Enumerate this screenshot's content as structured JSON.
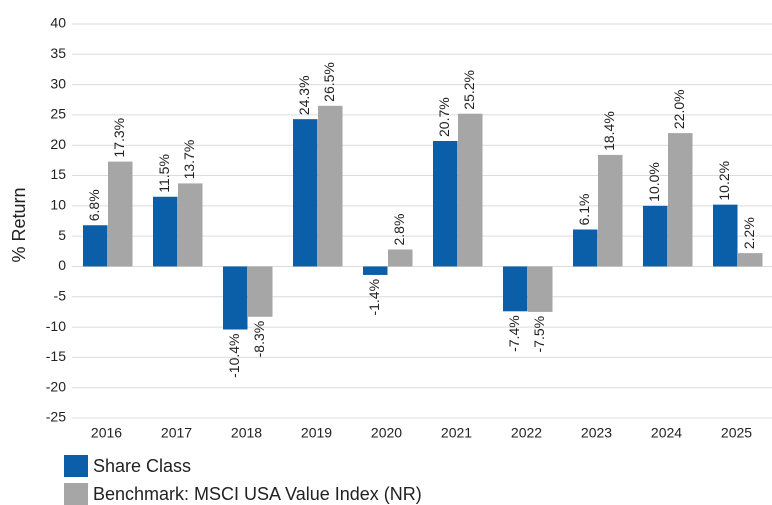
{
  "chart_data": {
    "type": "bar",
    "y_label": "% Return",
    "categories": [
      "2016",
      "2017",
      "2018",
      "2019",
      "2020",
      "2021",
      "2022",
      "2023",
      "2024",
      "2025"
    ],
    "series": [
      {
        "name": "Share Class",
        "color": "#0b5ea8",
        "values": [
          6.8,
          11.5,
          -10.4,
          24.3,
          -1.4,
          20.7,
          -7.4,
          6.1,
          10.0,
          10.2
        ],
        "value_labels": [
          "6.8%",
          "11.5%",
          "-10.4%",
          "24.3%",
          "-1.4%",
          "20.7%",
          "-7.4%",
          "6.1%",
          "10.0%",
          "10.2%"
        ]
      },
      {
        "name": "Benchmark: MSCI USA Value Index (NR)",
        "color": "#a6a6a6",
        "values": [
          17.3,
          13.7,
          -8.3,
          26.5,
          2.8,
          25.2,
          -7.5,
          18.4,
          22.0,
          2.2
        ],
        "value_labels": [
          "17.3%",
          "13.7%",
          "-8.3%",
          "26.5%",
          "2.8%",
          "25.2%",
          "-7.5%",
          "18.4%",
          "22.0%",
          "2.2%"
        ]
      }
    ],
    "ylim": [
      -25,
      40
    ],
    "yticks": [
      -25,
      -20,
      -15,
      -10,
      -5,
      0,
      5,
      10,
      15,
      20,
      25,
      30,
      35,
      40
    ],
    "grid": true,
    "legend": "bottom"
  }
}
